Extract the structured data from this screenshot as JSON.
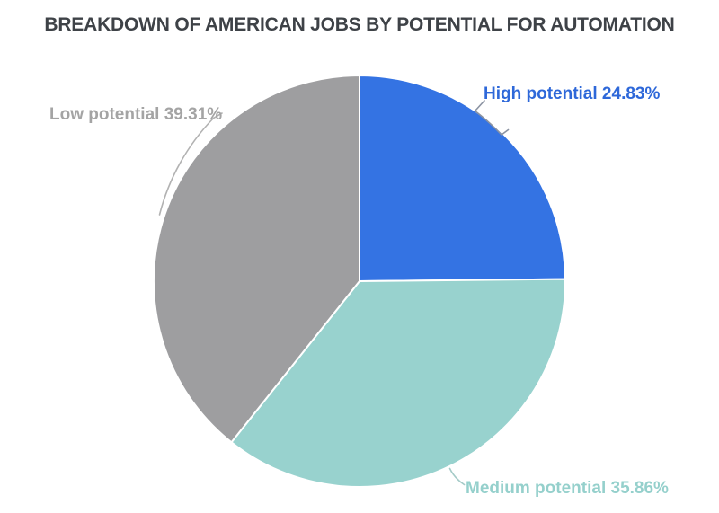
{
  "title": "BREAKDOWN OF AMERICAN JOBS BY POTENTIAL FOR AUTOMATION",
  "chart_data": {
    "type": "pie",
    "title": "BREAKDOWN OF AMERICAN JOBS BY POTENTIAL FOR AUTOMATION",
    "unit": "%",
    "start_angle_deg": 0,
    "direction": "clockwise",
    "legend_position": "outside-labels-with-leader-lines",
    "series": [
      {
        "name": "High potential",
        "value": 24.83,
        "display_label": "High potential 24.83%",
        "color": "#3473e3",
        "label_color": "#2e68d9",
        "leader_color": "#8b93a2"
      },
      {
        "name": "Medium potential",
        "value": 35.86,
        "display_label": "Medium potential 35.86%",
        "color": "#98d2ce",
        "label_color": "#95d0cc",
        "leader_color": "#a5cbc8"
      },
      {
        "name": "Low potential",
        "value": 39.31,
        "display_label": "Low potential 39.31%",
        "color": "#9e9ea0",
        "label_color": "#a4a4a4",
        "leader_color": "#b2b2b2"
      }
    ]
  }
}
